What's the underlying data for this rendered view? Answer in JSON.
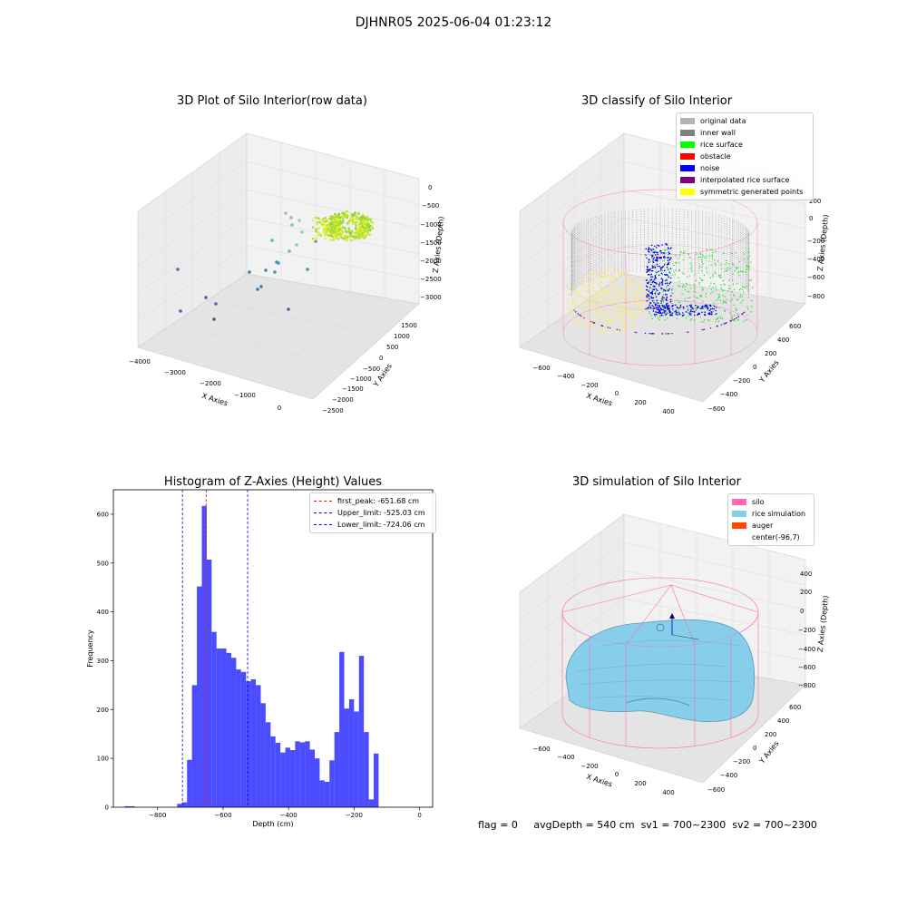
{
  "suptitle": "DJHNR05 2025-06-04 01:23:12",
  "panels": {
    "raw": {
      "title": "3D Plot of Silo Interior(row data)",
      "xlabel": "X Axies",
      "ylabel": "Y Axies",
      "zlabel": "Z Axies (Depth)",
      "xticks": [
        "−4000",
        "−3000",
        "−2000",
        "−1000",
        "0"
      ],
      "yticks": [
        "1500",
        "1000",
        "500",
        "0",
        "−500",
        "−1000",
        "−1500",
        "−2000",
        "−2500"
      ],
      "zticks": [
        "0",
        "−500",
        "−1000",
        "−1500",
        "−2000",
        "−2500",
        "−3000"
      ]
    },
    "classify": {
      "title": "3D classify of Silo Interior",
      "xlabel": "X Axies",
      "ylabel": "Y Axies",
      "zlabel": "Z Axies (Depth)",
      "xticks": [
        "−600",
        "−400",
        "−200",
        "0",
        "200",
        "400"
      ],
      "yticks": [
        "600",
        "400",
        "200",
        "0",
        "−200",
        "−400",
        "−600"
      ],
      "zticks": [
        "200",
        "0",
        "−200",
        "−400",
        "−600",
        "−800"
      ],
      "legend": [
        {
          "label": "original data",
          "color": "#b3b3b3"
        },
        {
          "label": "inner wall",
          "color": "#808080"
        },
        {
          "label": "rice surface",
          "color": "#00ff00"
        },
        {
          "label": "obstacle",
          "color": "#ff0000"
        },
        {
          "label": "noise",
          "color": "#0000ff"
        },
        {
          "label": "interpolated rice surface",
          "color": "#800080"
        },
        {
          "label": "symmetric generated points",
          "color": "#ffff00"
        }
      ]
    },
    "simulation": {
      "title": "3D simulation of Silo Interior",
      "xlabel": "X Axies",
      "ylabel": "Y Axies",
      "zlabel": "Z Axies (Depth)",
      "xticks": [
        "−600",
        "−400",
        "−200",
        "0",
        "200",
        "400"
      ],
      "yticks": [
        "600",
        "400",
        "200",
        "0",
        "−200",
        "−400",
        "−600"
      ],
      "zticks": [
        "400",
        "200",
        "0",
        "−200",
        "−400",
        "−600",
        "−800"
      ],
      "legend": [
        {
          "label": "silo",
          "color": "#ff69b4"
        },
        {
          "label": "rice simulation",
          "color": "#87ceeb"
        },
        {
          "label": "auger",
          "color": "#ff4500"
        },
        {
          "label": "center(-96,7)",
          "color": ""
        }
      ]
    }
  },
  "chart_data": {
    "type": "bar",
    "title": "Histogram of Z-Axies (Height) Values",
    "xlabel": "Depth (cm)",
    "ylabel": "Frequency",
    "xlim": [
      -935,
      40
    ],
    "ylim": [
      0,
      650
    ],
    "xticks": [
      -800,
      -600,
      -400,
      -200,
      0
    ],
    "yticks": [
      0,
      100,
      200,
      300,
      400,
      500,
      600
    ],
    "bin_width": 15,
    "bins": [
      {
        "x0": -900,
        "count": 2
      },
      {
        "x0": -885,
        "count": 2
      },
      {
        "x0": -740,
        "count": 7
      },
      {
        "x0": -725,
        "count": 10
      },
      {
        "x0": -710,
        "count": 97
      },
      {
        "x0": -695,
        "count": 250
      },
      {
        "x0": -680,
        "count": 452
      },
      {
        "x0": -665,
        "count": 617
      },
      {
        "x0": -650,
        "count": 507
      },
      {
        "x0": -635,
        "count": 359
      },
      {
        "x0": -620,
        "count": 325
      },
      {
        "x0": -605,
        "count": 325
      },
      {
        "x0": -590,
        "count": 316
      },
      {
        "x0": -575,
        "count": 306
      },
      {
        "x0": -560,
        "count": 282
      },
      {
        "x0": -545,
        "count": 277
      },
      {
        "x0": -530,
        "count": 258
      },
      {
        "x0": -515,
        "count": 262
      },
      {
        "x0": -500,
        "count": 250
      },
      {
        "x0": -485,
        "count": 213
      },
      {
        "x0": -470,
        "count": 174
      },
      {
        "x0": -455,
        "count": 145
      },
      {
        "x0": -440,
        "count": 132
      },
      {
        "x0": -425,
        "count": 112
      },
      {
        "x0": -410,
        "count": 122
      },
      {
        "x0": -395,
        "count": 117
      },
      {
        "x0": -380,
        "count": 135
      },
      {
        "x0": -365,
        "count": 133
      },
      {
        "x0": -350,
        "count": 135
      },
      {
        "x0": -335,
        "count": 118
      },
      {
        "x0": -320,
        "count": 100
      },
      {
        "x0": -305,
        "count": 55
      },
      {
        "x0": -290,
        "count": 52
      },
      {
        "x0": -275,
        "count": 96
      },
      {
        "x0": -260,
        "count": 154
      },
      {
        "x0": -245,
        "count": 318
      },
      {
        "x0": -230,
        "count": 202
      },
      {
        "x0": -215,
        "count": 221
      },
      {
        "x0": -200,
        "count": 196
      },
      {
        "x0": -185,
        "count": 310
      },
      {
        "x0": -170,
        "count": 154
      },
      {
        "x0": -155,
        "count": 16
      },
      {
        "x0": -140,
        "count": 110
      }
    ],
    "bar_color": "#0000ff",
    "vlines": [
      {
        "name": "first_peak: -651.68 cm",
        "x": -651.68,
        "color": "#ff0000"
      },
      {
        "name": "Upper_limit: -525.03 cm",
        "x": -525.03,
        "color": "#0000ff"
      },
      {
        "name": "Lower_limit: -724.06 cm",
        "x": -724.06,
        "color": "#0000ff"
      }
    ],
    "legend_position": "top-right"
  },
  "footer": {
    "flag": "flag = 0",
    "avg_depth": "avgDepth = 540 cm",
    "sv1": "sv1 = 700~2300",
    "sv2": "sv2 = 700~2300"
  }
}
